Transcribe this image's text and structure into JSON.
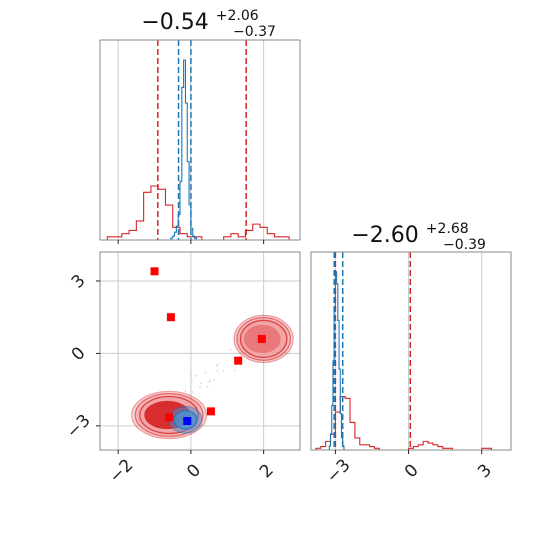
{
  "colors": {
    "red": "#d62728",
    "red_fill_dark": "#d62728",
    "red_fill_light": "#f2a2a4",
    "blue": "#1f77b4",
    "blue_fill": "#4f8fd0",
    "marker_red": "#ff0000",
    "marker_blue": "#0000ff"
  },
  "chart_data": {
    "type": "corner",
    "parameters": [
      {
        "title": {
          "median": "−0.54",
          "plus": "+2.06",
          "minus": "−0.37"
        },
        "range": [
          -2.5,
          3.0
        ],
        "ticks": [
          {
            "v": -2,
            "label": "−2"
          },
          {
            "v": 0,
            "label": "0"
          },
          {
            "v": 2,
            "label": "2"
          }
        ],
        "quantiles_red": [
          -0.91,
          1.52
        ],
        "quantiles_blue": [
          -0.34,
          0.0
        ],
        "hist_red": {
          "edges_start": -2.5,
          "bin_width": 0.2,
          "counts": [
            0,
            1,
            1,
            2,
            3,
            6,
            15,
            17,
            16,
            11,
            4,
            2,
            1,
            1,
            0,
            0,
            0,
            1,
            2,
            1,
            3,
            5,
            4,
            2,
            1,
            1,
            0
          ]
        },
        "hist_blue": {
          "edges_start": -0.6,
          "bin_width": 0.05,
          "counts": [
            0,
            1,
            2,
            4,
            7,
            13,
            30,
            78,
            92,
            70,
            40,
            18,
            6,
            2,
            1,
            0
          ]
        }
      },
      {
        "title": {
          "median": "−2.60",
          "plus": "+2.68",
          "minus": "−0.39"
        },
        "range": [
          -4.0,
          4.2
        ],
        "ticks": [
          {
            "v": -3,
            "label": "−3"
          },
          {
            "v": 0,
            "label": "0"
          },
          {
            "v": 3,
            "label": "3"
          }
        ],
        "quantiles_red": [
          -3.0,
          0.07
        ],
        "quantiles_blue": [
          -3.05,
          -2.7
        ],
        "hist_red": {
          "edges_start": -4.0,
          "bin_width": 0.2,
          "counts": [
            0,
            1,
            2,
            5,
            9,
            22,
            31,
            30,
            16,
            7,
            3,
            3,
            2,
            1,
            0,
            0,
            0,
            0,
            0,
            0,
            1,
            2,
            3,
            5,
            4,
            3,
            2,
            1,
            1,
            0,
            0,
            0,
            0,
            0,
            0,
            1,
            1,
            0,
            0,
            0,
            0
          ]
        },
        "hist_blue": {
          "edges_start": -3.3,
          "bin_width": 0.05,
          "counts": [
            0,
            2,
            8,
            22,
            44,
            70,
            88,
            82,
            64,
            40,
            18,
            6,
            2,
            0
          ]
        }
      }
    ],
    "joint": {
      "red_contours": [
        {
          "cx": -0.6,
          "cy": -2.55,
          "rx": 0.95,
          "ry": 0.9
        },
        {
          "cx": 2.0,
          "cy": 0.6,
          "rx": 0.75,
          "ry": 0.9
        }
      ],
      "blue_contour": {
        "cx": -0.15,
        "cy": -2.75,
        "rx": 0.45,
        "ry": 0.55
      },
      "markers_red": [
        {
          "x": -1.0,
          "y": 3.4
        },
        {
          "x": -0.55,
          "y": 1.5
        },
        {
          "x": -0.6,
          "y": -2.65
        },
        {
          "x": 0.55,
          "y": -2.4
        },
        {
          "x": 1.3,
          "y": -0.3
        },
        {
          "x": 1.95,
          "y": 0.6
        }
      ],
      "marker_blue": {
        "x": -0.1,
        "y": -2.8
      }
    }
  }
}
